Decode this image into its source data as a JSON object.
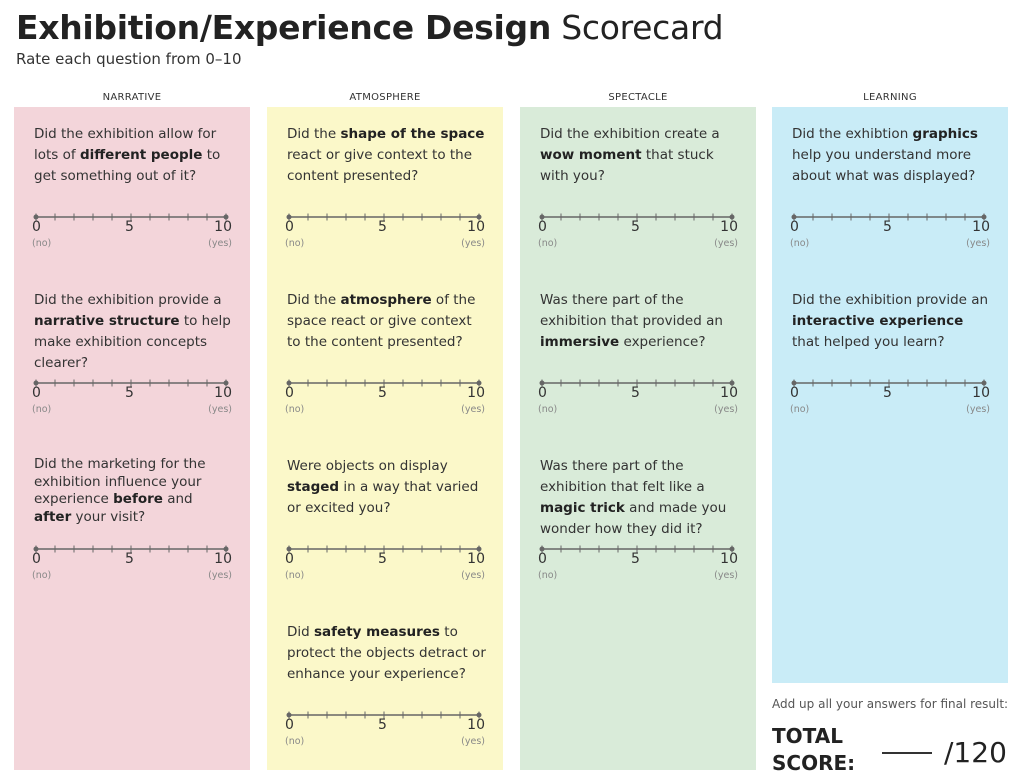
{
  "title": {
    "bold": "Exhibition/Experience Design",
    "light": "Scorecard"
  },
  "subtitle": "Rate each question from 0–10",
  "colors": {
    "narrative": "#f3d5da",
    "atmosphere": "#fbf8c9",
    "spectacle": "#d9ebd9",
    "learning": "#c9ecf7",
    "scale_line": "#666666"
  },
  "scale": {
    "min": "0",
    "mid": "5",
    "max": "10",
    "min_label": "(no)",
    "max_label": "(yes)"
  },
  "columns": [
    {
      "header": "NARRATIVE",
      "questions": [
        {
          "parts": [
            "Did the exhibition allow for lots of ",
            "different people",
            " to get something out of it?"
          ]
        },
        {
          "parts": [
            "Did the exhibition provide a ",
            "narrative structure",
            " to help make exhibition concepts clearer?"
          ]
        },
        {
          "parts": [
            "Did the marketing for the exhibition influence your experience ",
            "before",
            " and ",
            "after",
            " your visit?"
          ]
        }
      ]
    },
    {
      "header": "ATMOSPHERE",
      "questions": [
        {
          "parts": [
            "Did the ",
            "shape of the space",
            " react or give context to the content presented?"
          ]
        },
        {
          "parts": [
            "Did the ",
            "atmosphere",
            " of the space react or give context to the content presented?"
          ]
        },
        {
          "parts": [
            "Were objects on display ",
            "staged",
            " in a way that varied or excited you?"
          ]
        },
        {
          "parts": [
            "Did ",
            "safety measures",
            " to protect the objects detract or enhance your experience?"
          ]
        }
      ]
    },
    {
      "header": "SPECTACLE",
      "questions": [
        {
          "parts": [
            "Did the exhibition create a ",
            "wow moment",
            " that stuck with you?"
          ]
        },
        {
          "parts": [
            "Was there part of the exhibition that provided an ",
            "immersive",
            " experience?"
          ]
        },
        {
          "parts": [
            "Was there part of the exhibition that felt like a ",
            "magic trick",
            " and made you wonder how they did it?"
          ]
        }
      ]
    },
    {
      "header": "LEARNING",
      "questions": [
        {
          "parts": [
            "Did the exhibtion ",
            "graphics",
            " help you understand more about what was displayed?"
          ]
        },
        {
          "parts": [
            "Did the exhibition provide an ",
            "interactive experience",
            " that helped you learn?"
          ]
        }
      ]
    }
  ],
  "footer": {
    "note": "Add up all your answers for final result:",
    "total_line1": "TOTAL",
    "total_line2": "SCORE:",
    "out_of": "/120"
  }
}
